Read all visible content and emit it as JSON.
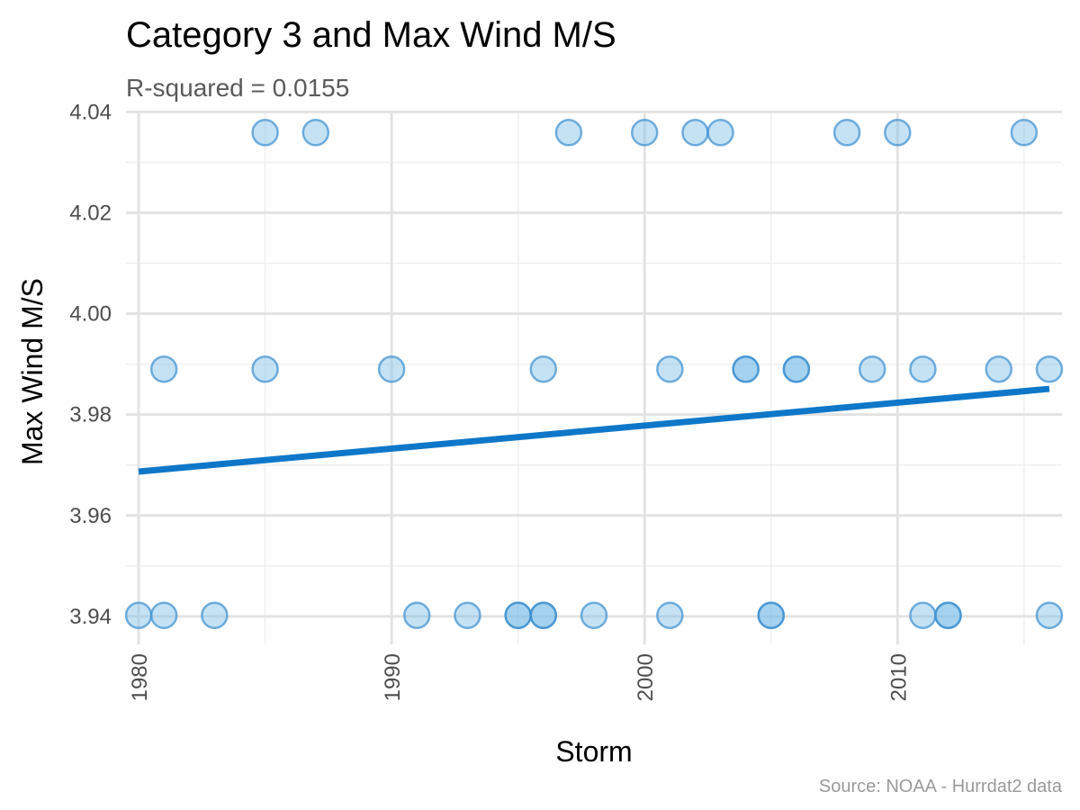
{
  "chart_data": {
    "type": "scatter",
    "title": "Category 3 and Max Wind M/S",
    "subtitle": "R-squared =  0.0155",
    "xlabel": "Storm",
    "ylabel": "Max Wind M/S",
    "caption": "Source: NOAA - Hurrdat2 data",
    "xlim": [
      1979.5,
      2016.5
    ],
    "ylim": [
      3.9373,
      4.0397
    ],
    "x_ticks": [
      1980,
      1990,
      2000,
      2010
    ],
    "x_tick_labels": [
      "1980",
      "1990",
      "2000",
      "2010"
    ],
    "y_ticks": [
      3.94,
      3.96,
      3.98,
      4.0,
      4.02,
      4.04
    ],
    "y_tick_labels": [
      "3.94",
      "3.96",
      "3.98",
      "4.00",
      "4.02",
      "4.04"
    ],
    "grid": true,
    "point_color": "#7fbfe8",
    "point_stroke": "#3a8fd0",
    "line_color": "#0f77c9",
    "series": [
      {
        "values": [
          {
            "x": 1985,
            "y": 4.0359
          },
          {
            "x": 1987,
            "y": 4.0359
          },
          {
            "x": 1997,
            "y": 4.0359
          },
          {
            "x": 2000,
            "y": 4.0359
          },
          {
            "x": 2002,
            "y": 4.0359
          },
          {
            "x": 2003,
            "y": 4.0359
          },
          {
            "x": 2008,
            "y": 4.0359
          },
          {
            "x": 2010,
            "y": 4.0359
          },
          {
            "x": 2015,
            "y": 4.0359
          },
          {
            "x": 1981,
            "y": 3.989
          },
          {
            "x": 1985,
            "y": 3.989
          },
          {
            "x": 1990,
            "y": 3.989
          },
          {
            "x": 1996,
            "y": 3.989
          },
          {
            "x": 2001,
            "y": 3.989
          },
          {
            "x": 2004,
            "y": 3.989
          },
          {
            "x": 2004,
            "y": 3.989
          },
          {
            "x": 2006,
            "y": 3.989
          },
          {
            "x": 2006,
            "y": 3.989
          },
          {
            "x": 2009,
            "y": 3.989
          },
          {
            "x": 2011,
            "y": 3.989
          },
          {
            "x": 2014,
            "y": 3.989
          },
          {
            "x": 2016,
            "y": 3.989
          },
          {
            "x": 1980,
            "y": 3.9402
          },
          {
            "x": 1981,
            "y": 3.9402
          },
          {
            "x": 1983,
            "y": 3.9402
          },
          {
            "x": 1991,
            "y": 3.9402
          },
          {
            "x": 1993,
            "y": 3.9402
          },
          {
            "x": 1995,
            "y": 3.9402
          },
          {
            "x": 1995,
            "y": 3.9402
          },
          {
            "x": 1996,
            "y": 3.9402
          },
          {
            "x": 1996,
            "y": 3.9402
          },
          {
            "x": 1998,
            "y": 3.9402
          },
          {
            "x": 2001,
            "y": 3.9402
          },
          {
            "x": 2005,
            "y": 3.9402
          },
          {
            "x": 2005,
            "y": 3.9402
          },
          {
            "x": 2011,
            "y": 3.9402
          },
          {
            "x": 2012,
            "y": 3.9402
          },
          {
            "x": 2012,
            "y": 3.9402
          },
          {
            "x": 2016,
            "y": 3.9402
          }
        ]
      }
    ],
    "trend_line": {
      "x": [
        1980,
        2016
      ],
      "y": [
        3.9687,
        3.9851
      ]
    }
  }
}
